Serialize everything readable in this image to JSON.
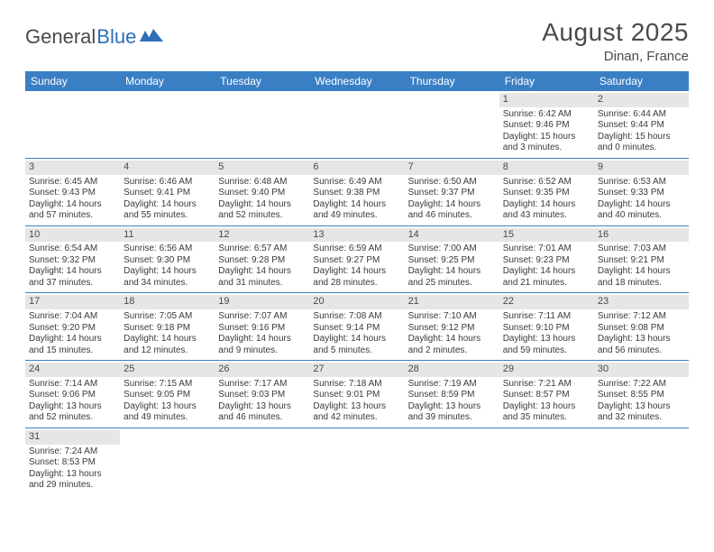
{
  "brand": {
    "general": "General",
    "blue": "Blue"
  },
  "title": "August 2025",
  "location": "Dinan, France",
  "colors": {
    "header_bg": "#3a7fc4",
    "header_fg": "#ffffff",
    "daynum_bg": "#e6e6e6",
    "text": "#3a3a3a",
    "rule": "#3a7fc4",
    "logo_blue": "#2d6fb5",
    "logo_gray": "#4a4a4a"
  },
  "day_headers": [
    "Sunday",
    "Monday",
    "Tuesday",
    "Wednesday",
    "Thursday",
    "Friday",
    "Saturday"
  ],
  "weeks": [
    [
      {
        "n": "",
        "sr": "",
        "ss": "",
        "dl": ""
      },
      {
        "n": "",
        "sr": "",
        "ss": "",
        "dl": ""
      },
      {
        "n": "",
        "sr": "",
        "ss": "",
        "dl": ""
      },
      {
        "n": "",
        "sr": "",
        "ss": "",
        "dl": ""
      },
      {
        "n": "",
        "sr": "",
        "ss": "",
        "dl": ""
      },
      {
        "n": "1",
        "sr": "Sunrise: 6:42 AM",
        "ss": "Sunset: 9:46 PM",
        "dl": "Daylight: 15 hours and 3 minutes."
      },
      {
        "n": "2",
        "sr": "Sunrise: 6:44 AM",
        "ss": "Sunset: 9:44 PM",
        "dl": "Daylight: 15 hours and 0 minutes."
      }
    ],
    [
      {
        "n": "3",
        "sr": "Sunrise: 6:45 AM",
        "ss": "Sunset: 9:43 PM",
        "dl": "Daylight: 14 hours and 57 minutes."
      },
      {
        "n": "4",
        "sr": "Sunrise: 6:46 AM",
        "ss": "Sunset: 9:41 PM",
        "dl": "Daylight: 14 hours and 55 minutes."
      },
      {
        "n": "5",
        "sr": "Sunrise: 6:48 AM",
        "ss": "Sunset: 9:40 PM",
        "dl": "Daylight: 14 hours and 52 minutes."
      },
      {
        "n": "6",
        "sr": "Sunrise: 6:49 AM",
        "ss": "Sunset: 9:38 PM",
        "dl": "Daylight: 14 hours and 49 minutes."
      },
      {
        "n": "7",
        "sr": "Sunrise: 6:50 AM",
        "ss": "Sunset: 9:37 PM",
        "dl": "Daylight: 14 hours and 46 minutes."
      },
      {
        "n": "8",
        "sr": "Sunrise: 6:52 AM",
        "ss": "Sunset: 9:35 PM",
        "dl": "Daylight: 14 hours and 43 minutes."
      },
      {
        "n": "9",
        "sr": "Sunrise: 6:53 AM",
        "ss": "Sunset: 9:33 PM",
        "dl": "Daylight: 14 hours and 40 minutes."
      }
    ],
    [
      {
        "n": "10",
        "sr": "Sunrise: 6:54 AM",
        "ss": "Sunset: 9:32 PM",
        "dl": "Daylight: 14 hours and 37 minutes."
      },
      {
        "n": "11",
        "sr": "Sunrise: 6:56 AM",
        "ss": "Sunset: 9:30 PM",
        "dl": "Daylight: 14 hours and 34 minutes."
      },
      {
        "n": "12",
        "sr": "Sunrise: 6:57 AM",
        "ss": "Sunset: 9:28 PM",
        "dl": "Daylight: 14 hours and 31 minutes."
      },
      {
        "n": "13",
        "sr": "Sunrise: 6:59 AM",
        "ss": "Sunset: 9:27 PM",
        "dl": "Daylight: 14 hours and 28 minutes."
      },
      {
        "n": "14",
        "sr": "Sunrise: 7:00 AM",
        "ss": "Sunset: 9:25 PM",
        "dl": "Daylight: 14 hours and 25 minutes."
      },
      {
        "n": "15",
        "sr": "Sunrise: 7:01 AM",
        "ss": "Sunset: 9:23 PM",
        "dl": "Daylight: 14 hours and 21 minutes."
      },
      {
        "n": "16",
        "sr": "Sunrise: 7:03 AM",
        "ss": "Sunset: 9:21 PM",
        "dl": "Daylight: 14 hours and 18 minutes."
      }
    ],
    [
      {
        "n": "17",
        "sr": "Sunrise: 7:04 AM",
        "ss": "Sunset: 9:20 PM",
        "dl": "Daylight: 14 hours and 15 minutes."
      },
      {
        "n": "18",
        "sr": "Sunrise: 7:05 AM",
        "ss": "Sunset: 9:18 PM",
        "dl": "Daylight: 14 hours and 12 minutes."
      },
      {
        "n": "19",
        "sr": "Sunrise: 7:07 AM",
        "ss": "Sunset: 9:16 PM",
        "dl": "Daylight: 14 hours and 9 minutes."
      },
      {
        "n": "20",
        "sr": "Sunrise: 7:08 AM",
        "ss": "Sunset: 9:14 PM",
        "dl": "Daylight: 14 hours and 5 minutes."
      },
      {
        "n": "21",
        "sr": "Sunrise: 7:10 AM",
        "ss": "Sunset: 9:12 PM",
        "dl": "Daylight: 14 hours and 2 minutes."
      },
      {
        "n": "22",
        "sr": "Sunrise: 7:11 AM",
        "ss": "Sunset: 9:10 PM",
        "dl": "Daylight: 13 hours and 59 minutes."
      },
      {
        "n": "23",
        "sr": "Sunrise: 7:12 AM",
        "ss": "Sunset: 9:08 PM",
        "dl": "Daylight: 13 hours and 56 minutes."
      }
    ],
    [
      {
        "n": "24",
        "sr": "Sunrise: 7:14 AM",
        "ss": "Sunset: 9:06 PM",
        "dl": "Daylight: 13 hours and 52 minutes."
      },
      {
        "n": "25",
        "sr": "Sunrise: 7:15 AM",
        "ss": "Sunset: 9:05 PM",
        "dl": "Daylight: 13 hours and 49 minutes."
      },
      {
        "n": "26",
        "sr": "Sunrise: 7:17 AM",
        "ss": "Sunset: 9:03 PM",
        "dl": "Daylight: 13 hours and 46 minutes."
      },
      {
        "n": "27",
        "sr": "Sunrise: 7:18 AM",
        "ss": "Sunset: 9:01 PM",
        "dl": "Daylight: 13 hours and 42 minutes."
      },
      {
        "n": "28",
        "sr": "Sunrise: 7:19 AM",
        "ss": "Sunset: 8:59 PM",
        "dl": "Daylight: 13 hours and 39 minutes."
      },
      {
        "n": "29",
        "sr": "Sunrise: 7:21 AM",
        "ss": "Sunset: 8:57 PM",
        "dl": "Daylight: 13 hours and 35 minutes."
      },
      {
        "n": "30",
        "sr": "Sunrise: 7:22 AM",
        "ss": "Sunset: 8:55 PM",
        "dl": "Daylight: 13 hours and 32 minutes."
      }
    ],
    [
      {
        "n": "31",
        "sr": "Sunrise: 7:24 AM",
        "ss": "Sunset: 8:53 PM",
        "dl": "Daylight: 13 hours and 29 minutes."
      },
      {
        "n": "",
        "sr": "",
        "ss": "",
        "dl": ""
      },
      {
        "n": "",
        "sr": "",
        "ss": "",
        "dl": ""
      },
      {
        "n": "",
        "sr": "",
        "ss": "",
        "dl": ""
      },
      {
        "n": "",
        "sr": "",
        "ss": "",
        "dl": ""
      },
      {
        "n": "",
        "sr": "",
        "ss": "",
        "dl": ""
      },
      {
        "n": "",
        "sr": "",
        "ss": "",
        "dl": ""
      }
    ]
  ]
}
